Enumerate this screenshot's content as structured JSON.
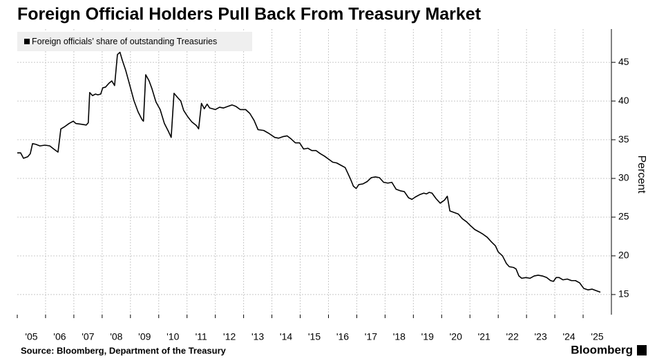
{
  "chart_data": {
    "type": "line",
    "title": "Foreign Official Holders Pull Back From Treasury Market",
    "y_label": "Percent",
    "source": "Source: Bloomberg, Department of the Treasury",
    "brand": "Bloomberg",
    "grid": true,
    "legend_position": "top-left",
    "xlim": [
      2005,
      2026
    ],
    "ylim": [
      12.4,
      49.3
    ],
    "yticks": [
      15,
      20,
      25,
      30,
      35,
      40,
      45
    ],
    "xticks": [
      {
        "value": 2005,
        "label": "'05"
      },
      {
        "value": 2006,
        "label": "'06"
      },
      {
        "value": 2007,
        "label": "'07"
      },
      {
        "value": 2008,
        "label": "'08"
      },
      {
        "value": 2009,
        "label": "'09"
      },
      {
        "value": 2010,
        "label": "'10"
      },
      {
        "value": 2011,
        "label": "'11"
      },
      {
        "value": 2012,
        "label": "'12"
      },
      {
        "value": 2013,
        "label": "'13"
      },
      {
        "value": 2014,
        "label": "'14"
      },
      {
        "value": 2015,
        "label": "'15"
      },
      {
        "value": 2016,
        "label": "'16"
      },
      {
        "value": 2017,
        "label": "'17"
      },
      {
        "value": 2018,
        "label": "'18"
      },
      {
        "value": 2019,
        "label": "'19"
      },
      {
        "value": 2020,
        "label": "'20"
      },
      {
        "value": 2021,
        "label": "'21"
      },
      {
        "value": 2022,
        "label": "'22"
      },
      {
        "value": 2023,
        "label": "'23"
      },
      {
        "value": 2024,
        "label": "'24"
      },
      {
        "value": 2025,
        "label": "'25"
      }
    ],
    "x": [
      2005.0,
      2005.12,
      2005.22,
      2005.37,
      2005.46,
      2005.54,
      2005.66,
      2005.8,
      2005.98,
      2006.15,
      2006.29,
      2006.44,
      2006.54,
      2006.68,
      2006.83,
      2006.98,
      2007.07,
      2007.27,
      2007.44,
      2007.51,
      2007.56,
      2007.66,
      2007.76,
      2007.85,
      2007.95,
      2008.02,
      2008.12,
      2008.24,
      2008.34,
      2008.44,
      2008.54,
      2008.63,
      2008.71,
      2008.83,
      2008.98,
      2009.12,
      2009.27,
      2009.41,
      2009.46,
      2009.54,
      2009.66,
      2009.76,
      2009.9,
      2010.05,
      2010.2,
      2010.34,
      2010.44,
      2010.54,
      2010.68,
      2010.78,
      2010.88,
      2011.02,
      2011.17,
      2011.34,
      2011.41,
      2011.51,
      2011.61,
      2011.71,
      2011.8,
      2012.0,
      2012.15,
      2012.29,
      2012.44,
      2012.59,
      2012.73,
      2012.88,
      2013.07,
      2013.22,
      2013.37,
      2013.51,
      2013.71,
      2013.9,
      2014.1,
      2014.24,
      2014.39,
      2014.54,
      2014.68,
      2014.83,
      2014.98,
      2015.12,
      2015.27,
      2015.41,
      2015.56,
      2015.71,
      2015.85,
      2016.0,
      2016.15,
      2016.29,
      2016.44,
      2016.59,
      2016.68,
      2016.78,
      2016.88,
      2016.98,
      2017.07,
      2017.22,
      2017.37,
      2017.51,
      2017.66,
      2017.8,
      2017.95,
      2018.1,
      2018.24,
      2018.39,
      2018.54,
      2018.68,
      2018.83,
      2018.95,
      2019.07,
      2019.22,
      2019.37,
      2019.46,
      2019.56,
      2019.66,
      2019.8,
      2019.95,
      2020.1,
      2020.2,
      2020.29,
      2020.44,
      2020.59,
      2020.73,
      2020.88,
      2021.02,
      2021.17,
      2021.32,
      2021.46,
      2021.61,
      2021.76,
      2021.9,
      2022.0,
      2022.15,
      2022.29,
      2022.39,
      2022.54,
      2022.63,
      2022.73,
      2022.83,
      2022.98,
      2023.12,
      2023.27,
      2023.41,
      2023.56,
      2023.71,
      2023.85,
      2023.95,
      2024.05,
      2024.15,
      2024.29,
      2024.44,
      2024.59,
      2024.73,
      2024.88,
      2025.02,
      2025.17,
      2025.32,
      2025.46,
      2025.61
    ],
    "series": [
      {
        "name": "Foreign officials’ share of outstanding Treasuries",
        "color": "#000000",
        "values": [
          33.3,
          33.3,
          32.6,
          32.8,
          33.2,
          34.5,
          34.4,
          34.2,
          34.3,
          34.2,
          33.8,
          33.4,
          36.4,
          36.7,
          37.1,
          37.4,
          37.1,
          37.0,
          36.9,
          37.2,
          41.1,
          40.7,
          40.9,
          40.8,
          40.9,
          41.7,
          41.8,
          42.3,
          42.6,
          42.0,
          46.0,
          46.3,
          45.3,
          44.0,
          42.0,
          40.1,
          38.6,
          37.6,
          37.4,
          43.4,
          42.6,
          41.6,
          39.9,
          38.9,
          37.1,
          36.1,
          35.3,
          41.0,
          40.4,
          40.0,
          38.8,
          38.0,
          37.3,
          36.8,
          36.4,
          39.7,
          39.0,
          39.6,
          39.1,
          38.9,
          39.2,
          39.1,
          39.3,
          39.5,
          39.3,
          38.9,
          38.9,
          38.4,
          37.5,
          36.3,
          36.2,
          35.8,
          35.3,
          35.2,
          35.4,
          35.5,
          35.1,
          34.6,
          34.6,
          33.8,
          33.9,
          33.6,
          33.6,
          33.2,
          32.9,
          32.5,
          32.1,
          32.0,
          31.7,
          31.4,
          30.7,
          29.9,
          29.0,
          28.7,
          29.2,
          29.3,
          29.6,
          30.1,
          30.2,
          30.1,
          29.5,
          29.4,
          29.5,
          28.6,
          28.4,
          28.3,
          27.5,
          27.3,
          27.6,
          27.9,
          28.1,
          28.0,
          28.2,
          28.1,
          27.4,
          26.8,
          27.2,
          27.7,
          25.8,
          25.6,
          25.4,
          24.8,
          24.4,
          23.9,
          23.4,
          23.1,
          22.8,
          22.4,
          21.8,
          21.3,
          20.5,
          20.0,
          19.0,
          18.6,
          18.5,
          18.3,
          17.4,
          17.1,
          17.2,
          17.1,
          17.4,
          17.5,
          17.4,
          17.2,
          16.8,
          16.7,
          17.2,
          17.2,
          16.9,
          17.0,
          16.8,
          16.8,
          16.5,
          15.8,
          15.6,
          15.7,
          15.5,
          15.3
        ]
      }
    ]
  }
}
